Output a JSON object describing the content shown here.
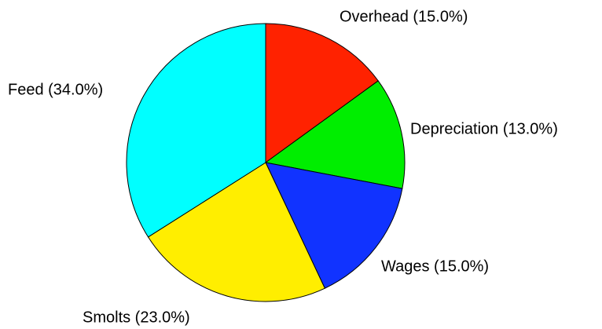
{
  "chart_data": {
    "type": "pie",
    "values": [
      15,
      13,
      15,
      23,
      34
    ],
    "value_labels": [
      "Overhead (15.0%)",
      "Depreciation (13.0%)",
      "Wages (15.0%)",
      "Smolts (23.0%)",
      "Feed (34.0%)"
    ],
    "colors": [
      "#ff2200",
      "#00ee00",
      "#1133ff",
      "#ffee00",
      "#00ffff"
    ]
  }
}
